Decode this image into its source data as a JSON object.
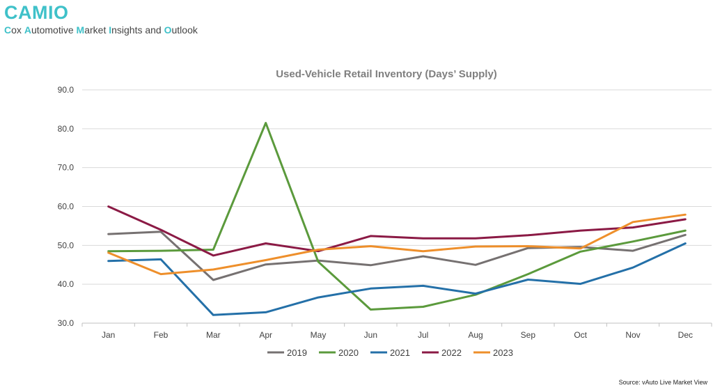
{
  "header": {
    "title": "CAMIO",
    "subtitle_parts": [
      {
        "t": "C",
        "hl": true
      },
      {
        "t": "ox ",
        "hl": false
      },
      {
        "t": "A",
        "hl": true
      },
      {
        "t": "utomotive ",
        "hl": false
      },
      {
        "t": "M",
        "hl": true
      },
      {
        "t": "arket ",
        "hl": false
      },
      {
        "t": "I",
        "hl": true
      },
      {
        "t": "nsights and ",
        "hl": false
      },
      {
        "t": "O",
        "hl": true
      },
      {
        "t": "utlook",
        "hl": false
      }
    ]
  },
  "source": "Source: vAuto Live Market View",
  "chart_data": {
    "type": "line",
    "title": "Used-Vehicle Retail Inventory (Days’ Supply)",
    "xlabel": "",
    "ylabel": "",
    "categories": [
      "Jan",
      "Feb",
      "Mar",
      "Apr",
      "May",
      "Jun",
      "Jul",
      "Aug",
      "Sep",
      "Oct",
      "Nov",
      "Dec"
    ],
    "ylim": [
      30,
      90
    ],
    "yticks": [
      "30.0",
      "40.0",
      "50.0",
      "60.0",
      "70.0",
      "80.0",
      "90.0"
    ],
    "grid": true,
    "legend_position": "bottom",
    "series": [
      {
        "name": "2019",
        "color": "#767171",
        "values": [
          52.9,
          53.5,
          41.1,
          45.1,
          46.1,
          44.9,
          47.2,
          45.0,
          49.3,
          49.6,
          48.6,
          52.7
        ]
      },
      {
        "name": "2020",
        "color": "#5b9a3c",
        "values": [
          48.5,
          48.6,
          48.9,
          81.5,
          45.8,
          33.5,
          34.2,
          37.3,
          42.6,
          48.4,
          51.0,
          53.8
        ]
      },
      {
        "name": "2021",
        "color": "#2470a8",
        "values": [
          46.0,
          46.4,
          32.1,
          32.8,
          36.6,
          38.9,
          39.6,
          37.6,
          41.2,
          40.1,
          44.3,
          50.5
        ]
      },
      {
        "name": "2022",
        "color": "#8b1a45",
        "values": [
          60.0,
          54.0,
          47.4,
          50.5,
          48.5,
          52.4,
          51.8,
          51.8,
          52.6,
          53.8,
          54.6,
          56.7
        ]
      },
      {
        "name": "2023",
        "color": "#ee8f2b",
        "values": [
          48.1,
          42.6,
          43.8,
          46.2,
          48.9,
          49.8,
          48.5,
          49.7,
          49.8,
          49.2,
          56.0,
          57.9
        ]
      }
    ]
  }
}
